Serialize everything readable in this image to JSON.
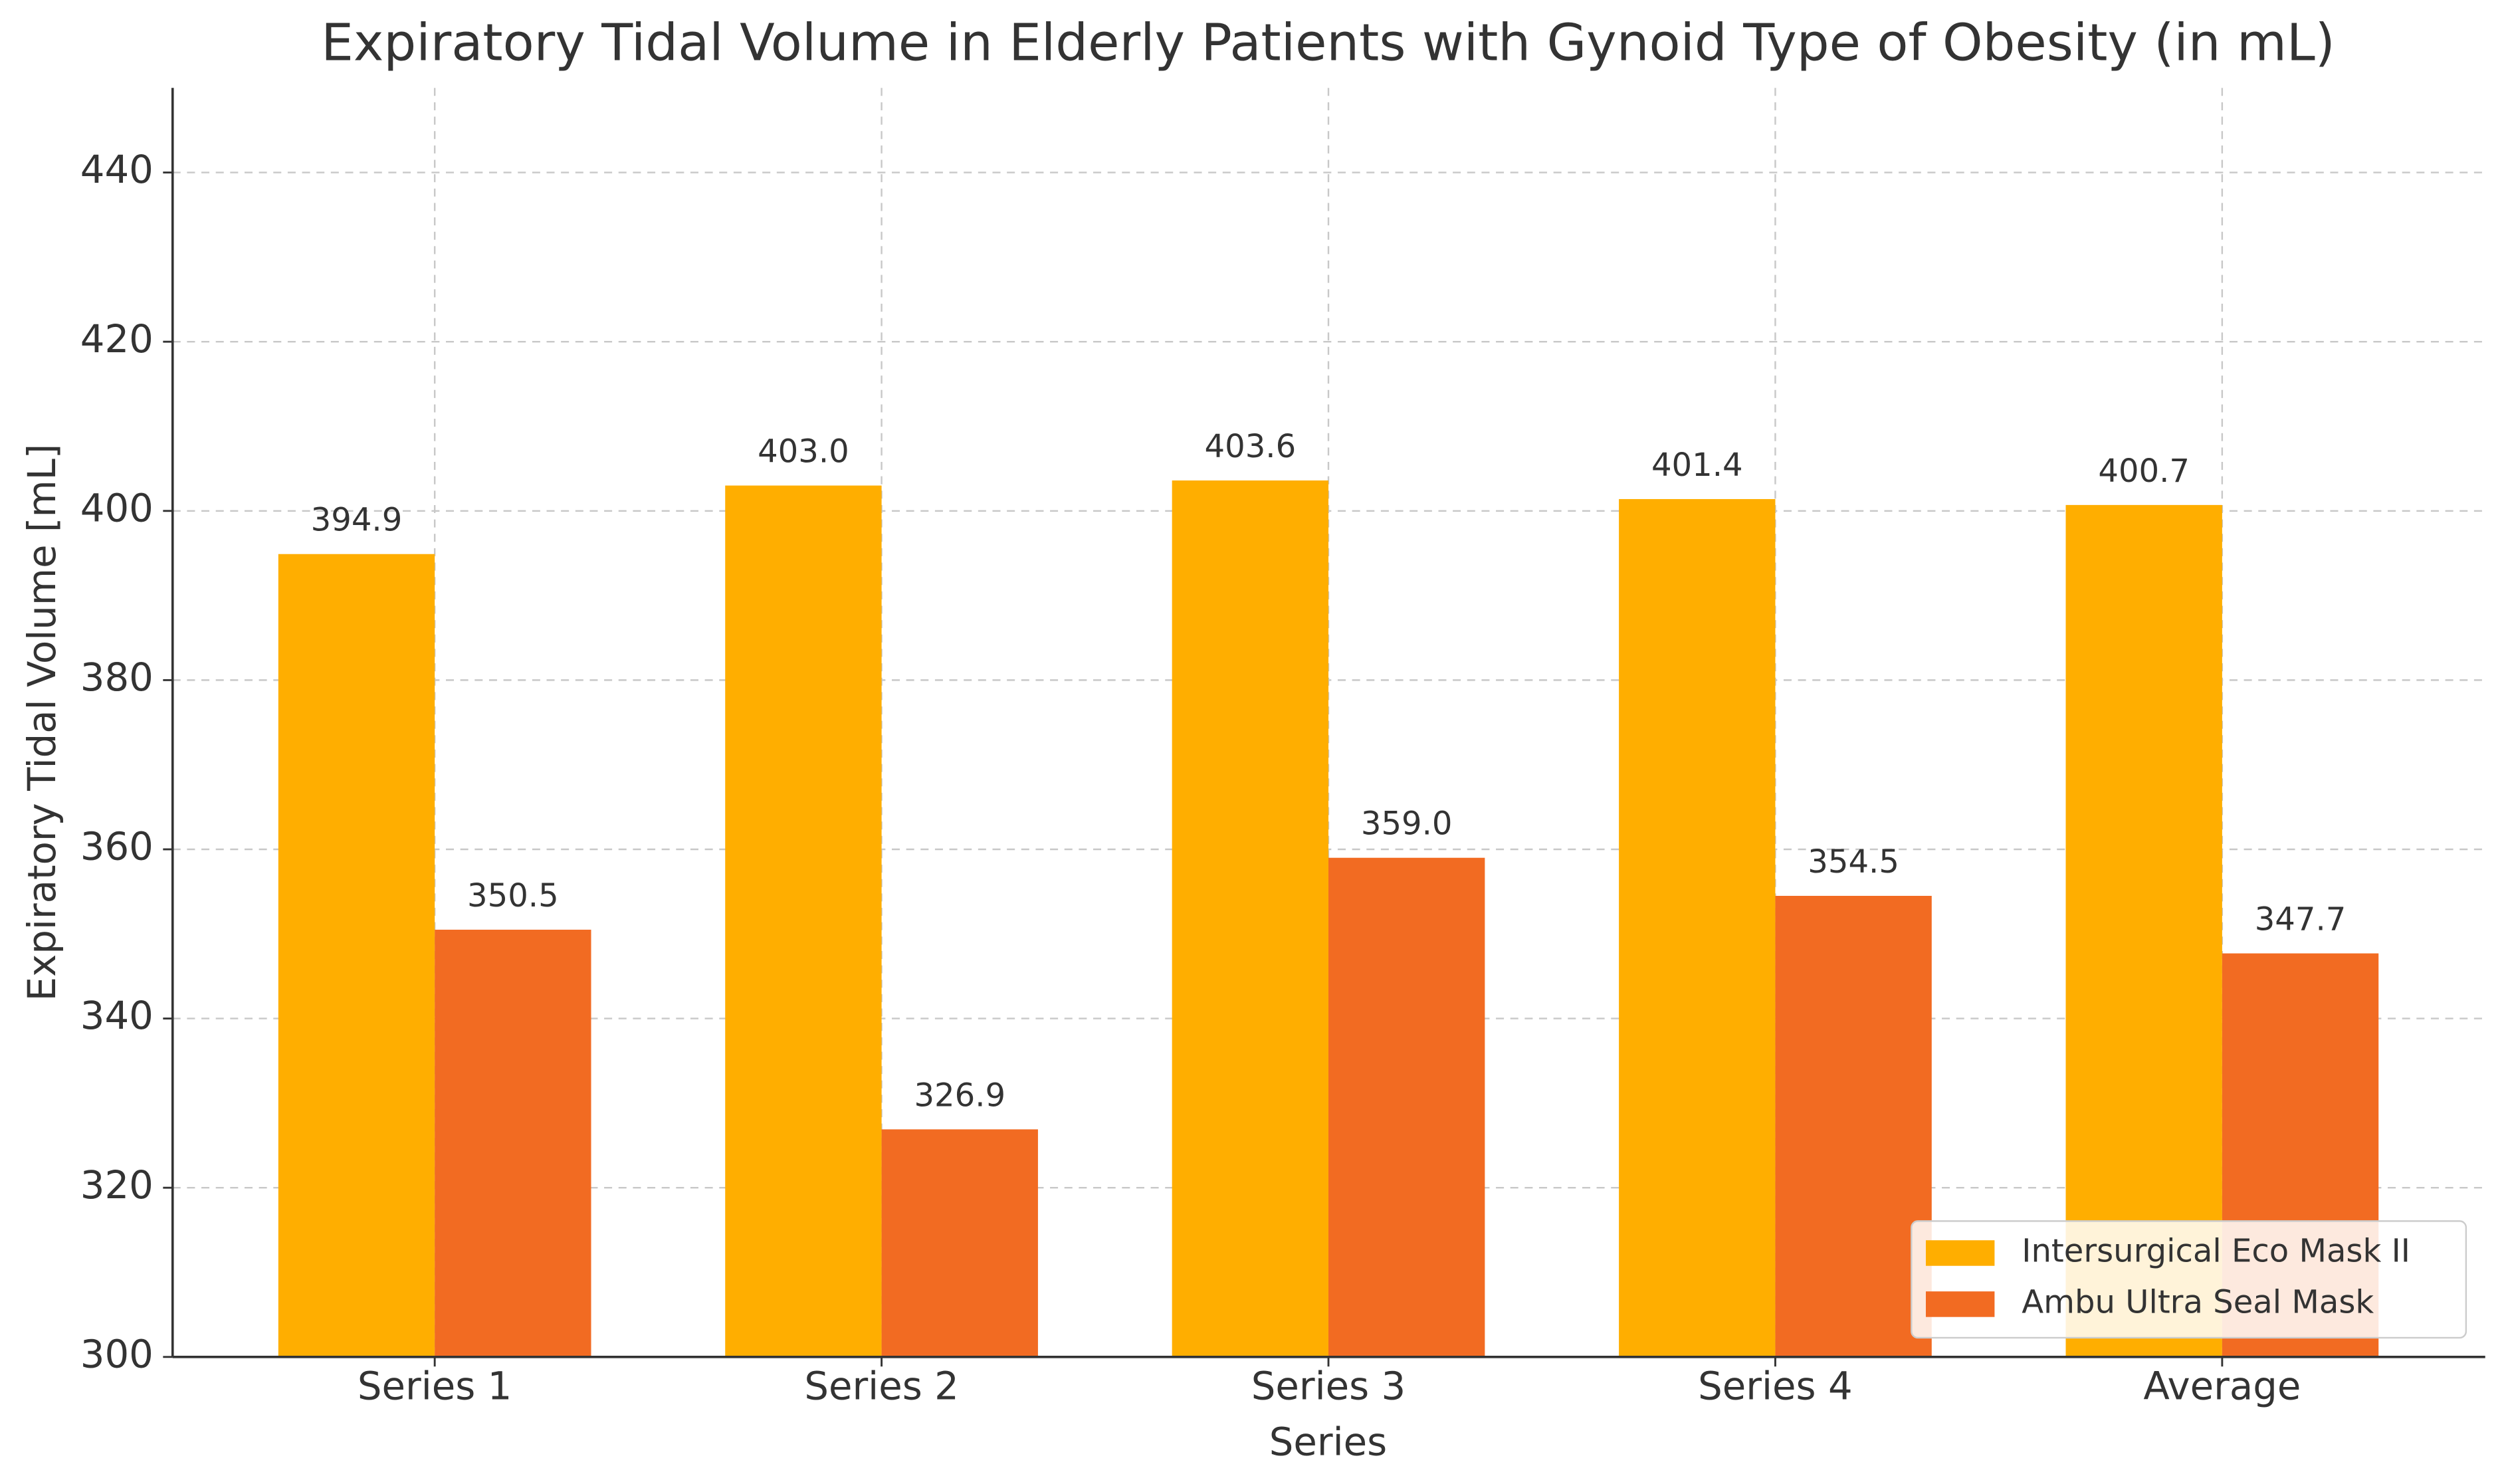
{
  "chart_data": {
    "type": "bar",
    "title": "Expiratory Tidal Volume in Elderly Patients with Gynoid Type of Obesity (in mL)",
    "x_label": "Series",
    "y_label": "Expiratory Tidal Volume [mL]",
    "categories": [
      "Series 1",
      "Series 2",
      "Series 3",
      "Series 4",
      "Average"
    ],
    "series": [
      {
        "name": "Intersurgical Eco Mask II",
        "color": "#ffae00",
        "values": [
          394.9,
          403,
          403.6,
          401.4,
          400.7
        ],
        "value_labels": [
          "394.9",
          "403.0",
          "403.6",
          "401.4",
          "400.7"
        ]
      },
      {
        "name": "Ambu Ultra Seal Mask",
        "color": "#f26b22",
        "values": [
          350.5,
          326.9,
          359,
          354.5,
          347.7
        ],
        "value_labels": [
          "350.5",
          "326.9",
          "359.0",
          "354.5",
          "347.7"
        ]
      }
    ],
    "ylim": [
      300,
      450
    ],
    "yticks": [
      300,
      320,
      340,
      360,
      380,
      400,
      420,
      440
    ],
    "grid": true,
    "legend": "lower right"
  }
}
